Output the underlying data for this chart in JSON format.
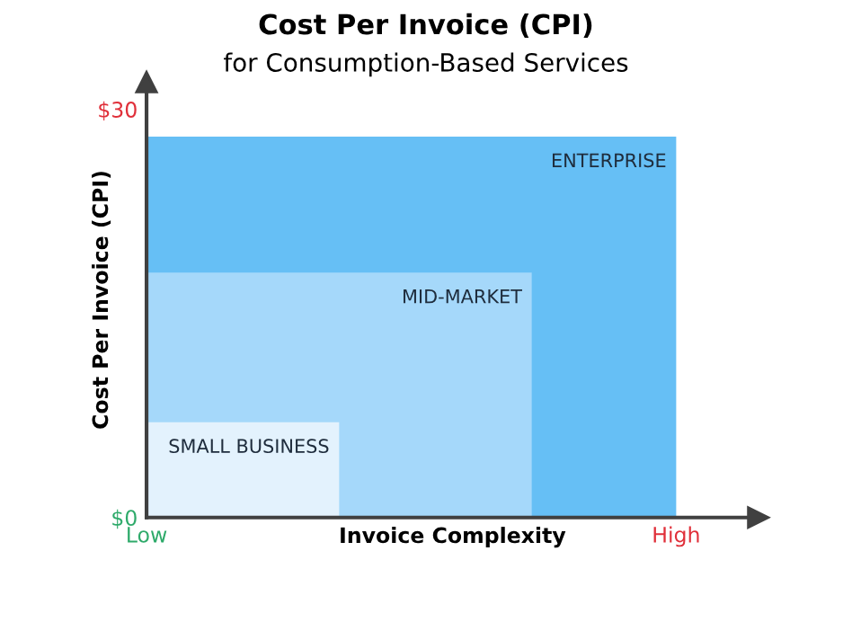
{
  "chart_data": {
    "type": "area",
    "title": "Cost Per Invoice (CPI)",
    "subtitle": "for Consumption-Based Services",
    "xlabel": "Invoice Complexity",
    "ylabel": "Cost Per Invoice (CPI)",
    "categories": [
      "Low",
      null,
      null,
      null,
      null,
      null,
      null,
      null,
      null,
      null,
      null,
      "High"
    ],
    "grid": false,
    "legend": false,
    "ylim": [
      0,
      32
    ],
    "yticks": [
      {
        "value": 0,
        "label": "$0"
      },
      {
        "value": 30,
        "label": "$30"
      }
    ],
    "series": [
      {
        "name": "ENTERPRISE",
        "color": "#66bff5",
        "values": [
          28,
          28,
          28,
          28,
          28,
          28,
          28,
          28,
          28,
          28,
          28,
          28
        ]
      },
      {
        "name": "MID-MARKET",
        "color": "#a5d8fa",
        "values": [
          18,
          18,
          18,
          18,
          18,
          18,
          18,
          18,
          18,
          null,
          null,
          null
        ]
      },
      {
        "name": "SMALL BUSINESS",
        "color": "#e3f2fd",
        "values": [
          7,
          7,
          7,
          7,
          7,
          null,
          null,
          null,
          null,
          null,
          null,
          null
        ]
      }
    ]
  }
}
